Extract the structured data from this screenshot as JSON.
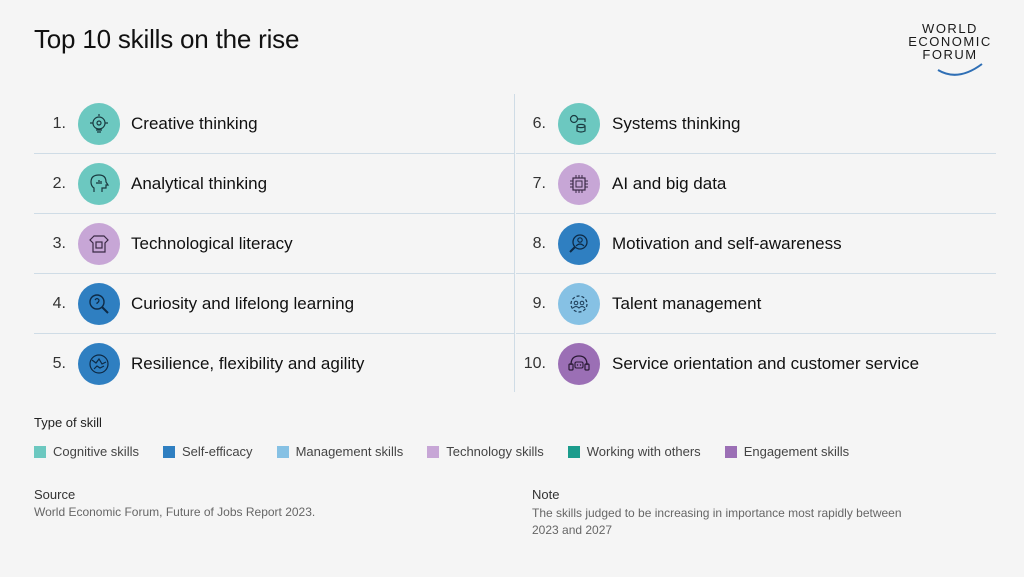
{
  "title": "Top 10 skills on the rise",
  "logo": {
    "line1": "WORLD",
    "line2": "ECONOMIC",
    "line3": "FORUM"
  },
  "skills_left": [
    {
      "num": "1.",
      "label": "Creative thinking",
      "icon": "lightbulb-gear-icon",
      "color": "#6cc8c0"
    },
    {
      "num": "2.",
      "label": "Analytical thinking",
      "icon": "head-chart-icon",
      "color": "#6cc8c0"
    },
    {
      "num": "3.",
      "label": "Technological literacy",
      "icon": "tshirt-chip-icon",
      "color": "#c7a6d6"
    },
    {
      "num": "4.",
      "label": "Curiosity and lifelong learning",
      "icon": "magnifier-question-icon",
      "color": "#2f7fc1"
    },
    {
      "num": "5.",
      "label": "Resilience, flexibility and agility",
      "icon": "globe-figure-icon",
      "color": "#2f7fc1"
    }
  ],
  "skills_right": [
    {
      "num": "6.",
      "label": "Systems thinking",
      "icon": "network-database-icon",
      "color": "#6cc8c0"
    },
    {
      "num": "7.",
      "label": "AI and big data",
      "icon": "chip-icon",
      "color": "#c7a6d6"
    },
    {
      "num": "8.",
      "label": "Motivation and self-awareness",
      "icon": "person-magnifier-icon",
      "color": "#2f7fc1"
    },
    {
      "num": "9.",
      "label": "Talent management",
      "icon": "people-gear-icon",
      "color": "#86c1e4"
    },
    {
      "num": "10.",
      "label": "Service orientation and customer service",
      "icon": "headset-chat-icon",
      "color": "#9b6fb5"
    }
  ],
  "legend": {
    "title": "Type of skill",
    "items": [
      {
        "label": "Cognitive skills",
        "color": "#6cc8c0"
      },
      {
        "label": "Self-efficacy",
        "color": "#2f7fc1"
      },
      {
        "label": "Management skills",
        "color": "#86c1e4"
      },
      {
        "label": "Technology skills",
        "color": "#c7a6d6"
      },
      {
        "label": "Working with others",
        "color": "#1b9c8c"
      },
      {
        "label": "Engagement skills",
        "color": "#9b6fb5"
      }
    ]
  },
  "source": {
    "title": "Source",
    "text": "World Economic Forum, Future of Jobs Report 2023."
  },
  "note": {
    "title": "Note",
    "text": "The skills judged to be increasing in importance most rapidly between 2023 and 2027"
  }
}
